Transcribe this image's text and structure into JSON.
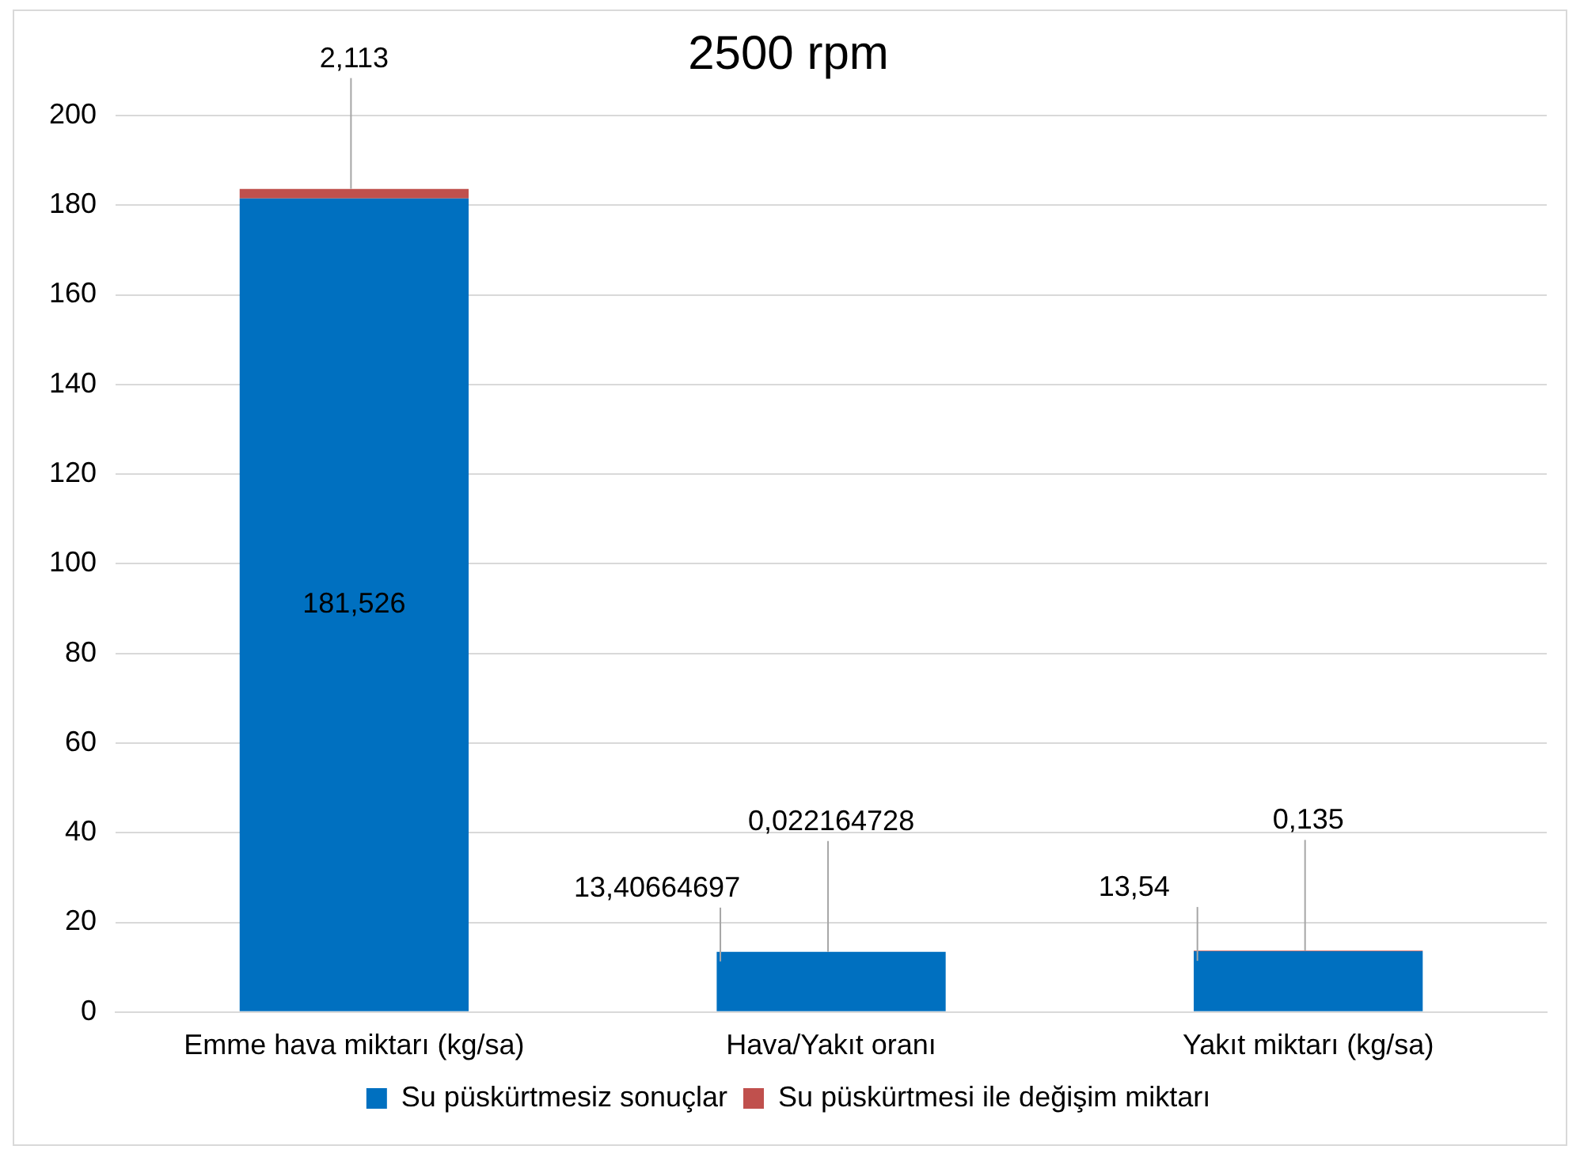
{
  "chart_data": {
    "type": "bar",
    "title": "2500 rpm",
    "stacked": true,
    "categories": [
      "Emme hava miktarı (kg/sa)",
      "Hava/Yakıt oranı",
      "Yakıt miktarı (kg/sa)"
    ],
    "series": [
      {
        "name": "Su püskürtmesiz sonuçlar",
        "color": "#0070c0",
        "values": [
          181.526,
          13.40664697,
          13.54
        ],
        "value_labels": [
          "181,526",
          "13,40664697",
          "13,54"
        ]
      },
      {
        "name": "Su püskürtmesi ile değişim miktarı",
        "color": "#c0504d",
        "values": [
          2.113,
          0.022164728,
          0.135
        ],
        "value_labels": [
          "2,113",
          "0,022164728",
          "0,135"
        ]
      }
    ],
    "ylim": [
      0,
      200
    ],
    "yticks": [
      0,
      20,
      40,
      60,
      80,
      100,
      120,
      140,
      160,
      180,
      200
    ],
    "grid": "y",
    "legend": "bottom"
  }
}
